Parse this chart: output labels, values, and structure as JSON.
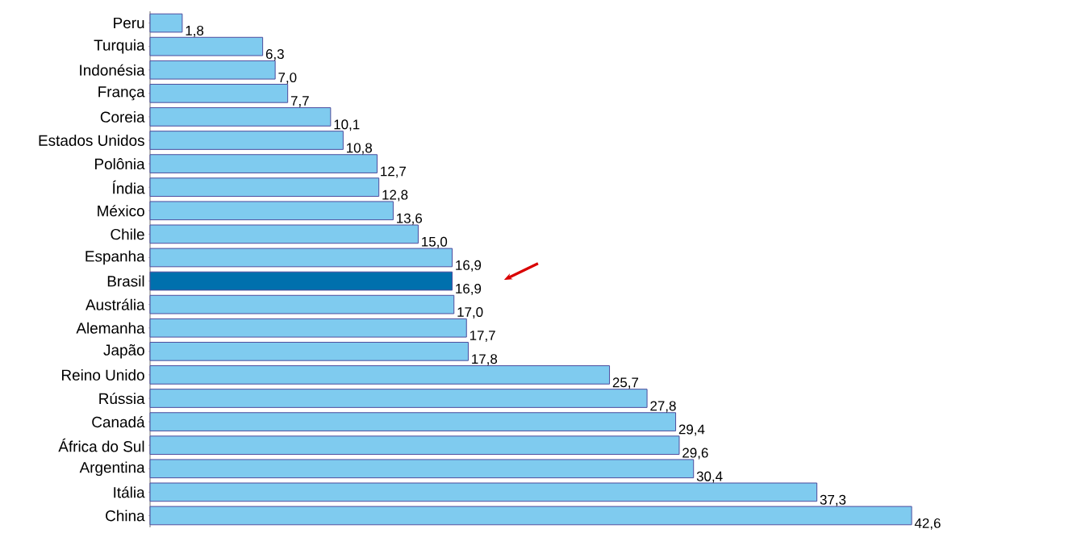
{
  "chart_data": {
    "type": "bar",
    "orientation": "horizontal",
    "categories": [
      "Peru",
      "Turquia",
      "Indonésia",
      "França",
      "Coreia",
      "Estados Unidos",
      "Polônia",
      "Índia",
      "México",
      "Chile",
      "Espanha",
      "Brasil",
      "Austrália",
      "Alemanha",
      "Japão",
      "Reino Unido",
      "Rússia",
      "Canadá",
      "África do Sul",
      "Argentina",
      "Itália",
      "China"
    ],
    "values": [
      1.8,
      6.3,
      7.0,
      7.7,
      10.1,
      10.8,
      12.7,
      12.8,
      13.6,
      15.0,
      16.9,
      16.9,
      17.0,
      17.7,
      17.8,
      25.7,
      27.8,
      29.4,
      29.6,
      30.4,
      37.3,
      42.6
    ],
    "value_labels": [
      "1,8",
      "6,3",
      "7,0",
      "7,7",
      "10,1",
      "10,8",
      "12,7",
      "12,8",
      "13,6",
      "15,0",
      "16,9",
      "16,9",
      "17,0",
      "17,7",
      "17,8",
      "25,7",
      "27,8",
      "29,4",
      "29,6",
      "30,4",
      "37,3",
      "42,6"
    ],
    "colors": [
      "#7fcbef",
      "#7fcbef",
      "#7fcbef",
      "#7fcbef",
      "#7fcbef",
      "#7fcbef",
      "#7fcbef",
      "#7fcbef",
      "#7fcbef",
      "#7fcbef",
      "#7fcbef",
      "#0070ad",
      "#7fcbef",
      "#7fcbef",
      "#7fcbef",
      "#7fcbef",
      "#7fcbef",
      "#7fcbef",
      "#7fcbef",
      "#7fcbef",
      "#7fcbef",
      "#7fcbef"
    ]
  }
}
